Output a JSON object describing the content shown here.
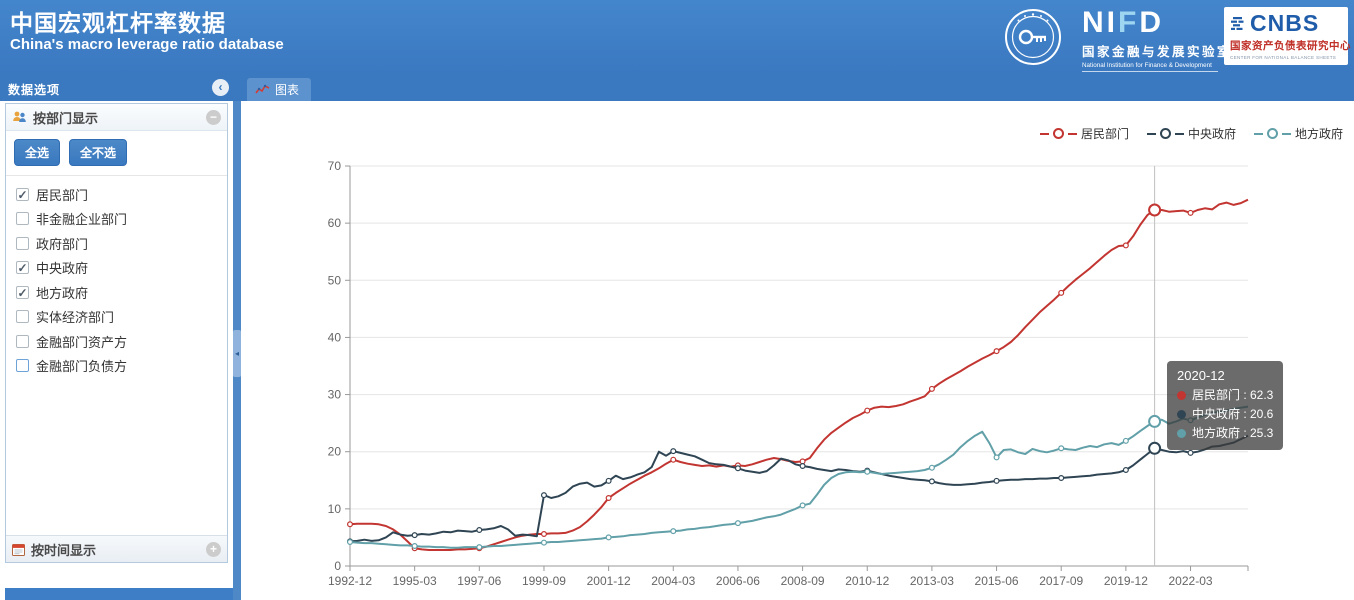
{
  "header": {
    "title": "中国宏观杠杆率数据",
    "subtitle": "China's macro leverage ratio database",
    "nifd": {
      "letters": [
        "N",
        "I",
        "F",
        "D"
      ],
      "cn": "国家金融与发展实验室",
      "en": "National Institution for Finance & Development"
    },
    "cnbs": {
      "acronym": "CNBS",
      "cn": "国家资产负债表研究中心",
      "en": "CENTER FOR NATIONAL BALANCE SHEETS"
    }
  },
  "sidebar": {
    "title": "数据选项",
    "section_sector": {
      "title": "按部门显示",
      "select_all": "全选",
      "deselect_all": "全不选",
      "items": [
        {
          "label": "居民部门",
          "checked": true
        },
        {
          "label": "非金融企业部门",
          "checked": false
        },
        {
          "label": "政府部门",
          "checked": false
        },
        {
          "label": "中央政府",
          "checked": true
        },
        {
          "label": "地方政府",
          "checked": true
        },
        {
          "label": "实体经济部门",
          "checked": false
        },
        {
          "label": "金融部门资产方",
          "checked": false
        },
        {
          "label": "金融部门负债方",
          "checked": false,
          "focused": true
        }
      ]
    },
    "section_time": {
      "title": "按时间显示"
    }
  },
  "main": {
    "tab": "图表"
  },
  "colors": {
    "header_blue": "#3d7ec6",
    "tab_active": "#5c92ce",
    "button_blue": "#3a78bf",
    "cnbs_blue": "#1f5ca9",
    "cnbs_red": "#c03028",
    "series_red": "#c23531",
    "series_navy": "#2f4554",
    "series_teal": "#61a0a8"
  },
  "chart_data": {
    "type": "line",
    "x_tick_labels": [
      "1992-12",
      "1995-03",
      "1997-06",
      "1999-09",
      "2001-12",
      "2004-03",
      "2006-06",
      "2008-09",
      "2010-12",
      "2013-03",
      "2015-06",
      "2017-09",
      "2019-12",
      "2022-03"
    ],
    "x_points_per_tick": 9,
    "x_total_points": 126,
    "x_frequency": "quarterly",
    "ylim": [
      0,
      70
    ],
    "y_tick_step": 10,
    "grid": true,
    "legend_position": "top-right",
    "series": [
      {
        "name": "居民部门",
        "key": "household",
        "color": "#c23531",
        "values": [
          7.3,
          7.4,
          7.4,
          7.4,
          7.3,
          7.0,
          6.4,
          5.5,
          4.3,
          3.1,
          2.9,
          2.8,
          2.8,
          2.8,
          2.8,
          2.9,
          2.9,
          3.0,
          3.1,
          3.4,
          3.8,
          4.2,
          4.6,
          5.0,
          5.3,
          5.5,
          5.6,
          5.6,
          5.7,
          5.7,
          5.8,
          6.2,
          6.8,
          7.8,
          9.0,
          10.3,
          11.9,
          12.8,
          13.6,
          14.4,
          15.1,
          15.8,
          16.4,
          17.1,
          17.9,
          18.6,
          18.2,
          17.9,
          17.7,
          17.5,
          17.6,
          17.4,
          17.6,
          17.4,
          17.6,
          17.5,
          17.8,
          18.2,
          18.6,
          18.9,
          18.7,
          18.4,
          18.2,
          18.3,
          18.9,
          20.6,
          22.1,
          23.3,
          24.2,
          25.1,
          25.9,
          26.5,
          27.2,
          27.7,
          27.9,
          27.8,
          28.0,
          28.3,
          28.8,
          29.2,
          29.7,
          31.0,
          31.9,
          32.7,
          33.4,
          34.1,
          34.9,
          35.6,
          36.3,
          36.9,
          37.6,
          38.3,
          39.2,
          40.4,
          41.8,
          43.1,
          44.4,
          45.5,
          46.6,
          47.8,
          49.0,
          50.1,
          51.1,
          52.1,
          53.2,
          54.3,
          55.3,
          56.0,
          56.1,
          57.7,
          59.7,
          61.4,
          62.3,
          62.3,
          62.0,
          62.1,
          62.2,
          61.8,
          62.3,
          62.6,
          62.4,
          63.3,
          63.6,
          63.2,
          63.5,
          64.1
        ]
      },
      {
        "name": "中央政府",
        "key": "central-government",
        "color": "#2f4554",
        "values": [
          4.3,
          4.4,
          4.6,
          4.4,
          4.5,
          5.0,
          5.9,
          5.5,
          5.3,
          5.4,
          5.6,
          5.5,
          5.7,
          6.0,
          5.9,
          6.2,
          6.1,
          6.0,
          6.3,
          6.4,
          6.6,
          7.0,
          6.4,
          5.3,
          5.5,
          5.4,
          5.2,
          12.4,
          11.9,
          12.2,
          12.8,
          13.9,
          14.4,
          14.6,
          13.9,
          14.1,
          14.9,
          15.8,
          15.2,
          15.5,
          16.0,
          16.4,
          17.3,
          20.0,
          19.3,
          20.1,
          19.8,
          19.5,
          19.2,
          18.6,
          18.0,
          17.8,
          17.7,
          17.4,
          17.1,
          16.7,
          16.5,
          16.3,
          16.6,
          17.6,
          18.8,
          18.5,
          17.8,
          17.5,
          17.3,
          17.0,
          16.8,
          16.6,
          16.9,
          16.8,
          16.6,
          16.5,
          16.7,
          16.4,
          16.1,
          15.8,
          15.6,
          15.4,
          15.2,
          15.1,
          15.0,
          14.8,
          14.5,
          14.3,
          14.2,
          14.2,
          14.3,
          14.4,
          14.6,
          14.7,
          14.9,
          15.0,
          15.1,
          15.1,
          15.2,
          15.2,
          15.3,
          15.3,
          15.4,
          15.4,
          15.5,
          15.6,
          15.7,
          15.8,
          16.0,
          16.1,
          16.2,
          16.4,
          16.8,
          17.6,
          18.6,
          19.6,
          20.6,
          20.3,
          20.0,
          19.9,
          20.1,
          19.8,
          20.0,
          20.4,
          20.9,
          21.0,
          21.3,
          21.6,
          22.2,
          22.8
        ]
      },
      {
        "name": "地方政府",
        "key": "local-government",
        "color": "#61a0a8",
        "values": [
          4.2,
          4.1,
          4.0,
          4.0,
          3.9,
          3.8,
          3.7,
          3.6,
          3.6,
          3.5,
          3.4,
          3.4,
          3.3,
          3.3,
          3.2,
          3.2,
          3.3,
          3.3,
          3.3,
          3.4,
          3.5,
          3.5,
          3.6,
          3.7,
          3.8,
          3.9,
          4.0,
          4.1,
          4.2,
          4.2,
          4.3,
          4.4,
          4.5,
          4.6,
          4.7,
          4.8,
          5.0,
          5.1,
          5.2,
          5.4,
          5.5,
          5.6,
          5.8,
          5.9,
          6.0,
          6.1,
          6.2,
          6.4,
          6.5,
          6.7,
          6.8,
          7.0,
          7.2,
          7.3,
          7.5,
          7.7,
          7.9,
          8.2,
          8.5,
          8.7,
          9.0,
          9.5,
          10.0,
          10.6,
          10.9,
          12.5,
          14.2,
          15.4,
          16.1,
          16.4,
          16.5,
          16.4,
          16.5,
          16.3,
          16.1,
          16.2,
          16.3,
          16.4,
          16.5,
          16.6,
          16.8,
          17.2,
          17.8,
          18.6,
          19.5,
          20.8,
          21.9,
          22.8,
          23.5,
          21.5,
          19.0,
          20.3,
          20.4,
          19.9,
          19.6,
          20.5,
          20.1,
          19.9,
          20.2,
          20.6,
          20.4,
          20.3,
          20.7,
          21.0,
          20.8,
          21.3,
          21.5,
          21.2,
          21.9,
          22.7,
          23.6,
          24.5,
          25.3,
          25.6,
          24.9,
          25.3,
          25.8,
          25.5,
          26.0,
          26.4,
          26.8,
          27.0,
          27.2,
          27.5,
          27.7,
          27.9
        ]
      }
    ],
    "tooltip": {
      "date": "2020-12",
      "index": 112,
      "rows": [
        {
          "label": "居民部门",
          "value": "62.3",
          "color": "#c23531"
        },
        {
          "label": "中央政府",
          "value": "20.6",
          "color": "#2f4554"
        },
        {
          "label": "地方政府",
          "value": "25.3",
          "color": "#61a0a8"
        }
      ]
    }
  }
}
